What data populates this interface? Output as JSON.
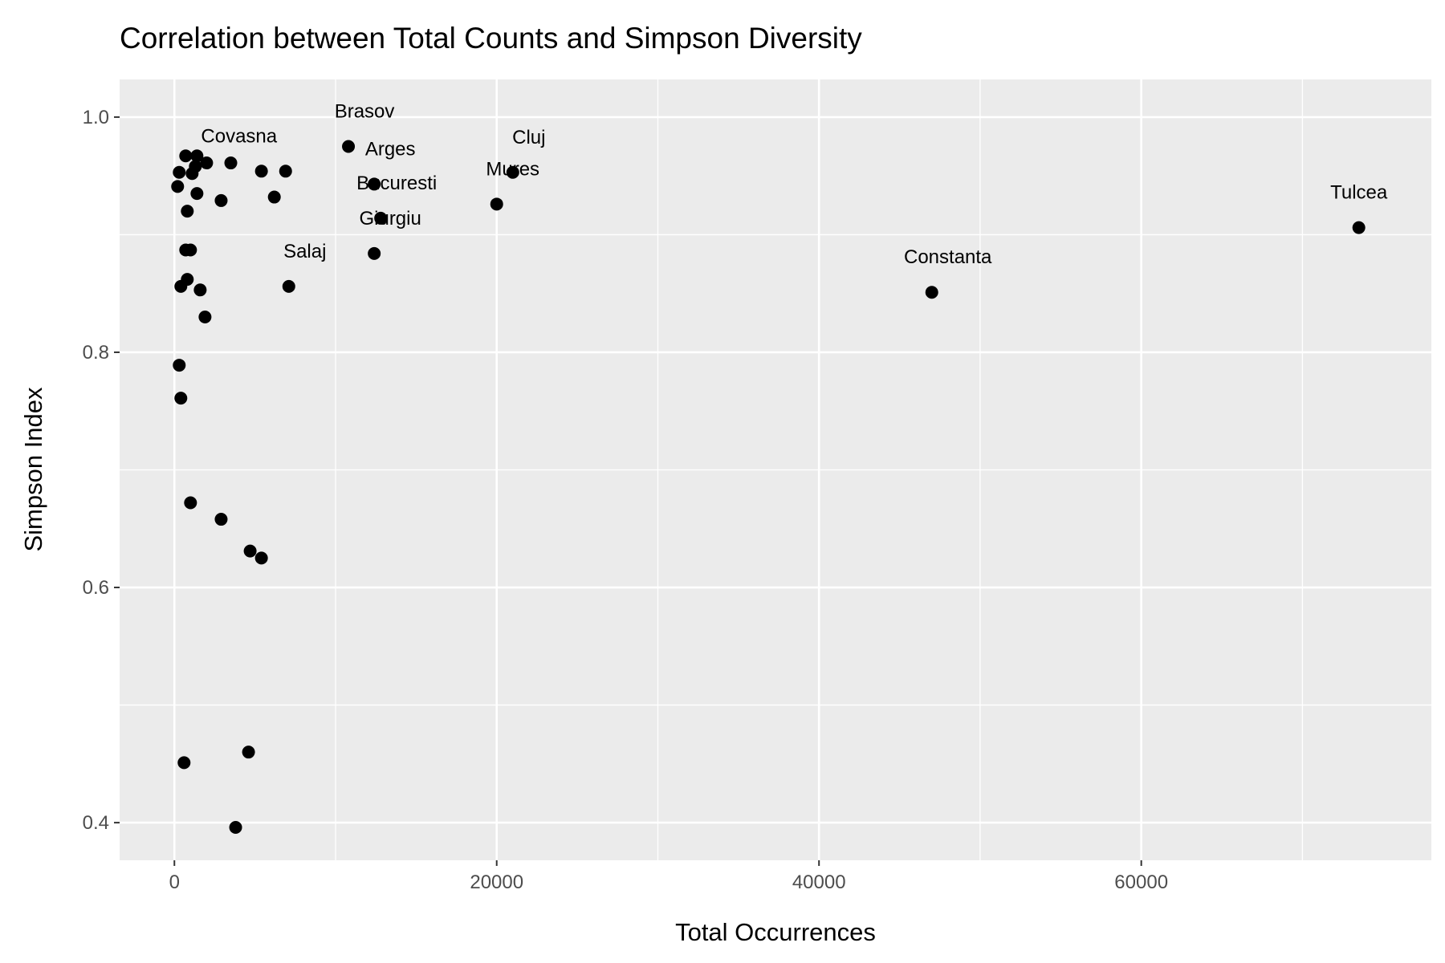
{
  "chart_data": {
    "type": "scatter",
    "title": "Correlation between Total Counts and Simpson Diversity",
    "xlabel": "Total Occurrences",
    "ylabel": "Simpson Index",
    "xlim": [
      -3400,
      78000
    ],
    "ylim": [
      0.368,
      1.032
    ],
    "x_ticks": [
      0,
      20000,
      40000,
      60000
    ],
    "x_tick_labels": [
      "0",
      "20000",
      "40000",
      "60000"
    ],
    "y_ticks": [
      0.4,
      0.6,
      0.8,
      1.0
    ],
    "y_tick_labels": [
      "0.4",
      "0.6",
      "0.8",
      "1.0"
    ],
    "x_minor_ticks": [
      10000,
      30000,
      50000,
      70000
    ],
    "y_minor_ticks": [
      0.5,
      0.7,
      0.9
    ],
    "grid": true,
    "legend": "none",
    "colors": {
      "panel_background": "#ebebeb",
      "grid_line": "#ffffff",
      "point": "#000000",
      "tick_label": "#4d4d4d"
    },
    "points": [
      {
        "x": 73500,
        "y": 0.906,
        "label": "Tulcea"
      },
      {
        "x": 47000,
        "y": 0.851,
        "label": "Constanta"
      },
      {
        "x": 21000,
        "y": 0.953,
        "label": "Cluj"
      },
      {
        "x": 20000,
        "y": 0.926,
        "label": "Mures"
      },
      {
        "x": 10800,
        "y": 0.975,
        "label": "Brasov"
      },
      {
        "x": 12400,
        "y": 0.943,
        "label": "Arges"
      },
      {
        "x": 12800,
        "y": 0.914,
        "label": "Bucuresti"
      },
      {
        "x": 12400,
        "y": 0.884,
        "label": "Giurgiu"
      },
      {
        "x": 6900,
        "y": 0.954,
        "label": "Covasna"
      },
      {
        "x": 7100,
        "y": 0.856,
        "label": "Salaj"
      },
      {
        "x": 5400,
        "y": 0.954,
        "label": ""
      },
      {
        "x": 6200,
        "y": 0.932,
        "label": ""
      },
      {
        "x": 3500,
        "y": 0.961,
        "label": ""
      },
      {
        "x": 2900,
        "y": 0.929,
        "label": ""
      },
      {
        "x": 2000,
        "y": 0.961,
        "label": ""
      },
      {
        "x": 1400,
        "y": 0.967,
        "label": ""
      },
      {
        "x": 700,
        "y": 0.967,
        "label": ""
      },
      {
        "x": 1300,
        "y": 0.958,
        "label": ""
      },
      {
        "x": 1100,
        "y": 0.952,
        "label": ""
      },
      {
        "x": 300,
        "y": 0.953,
        "label": ""
      },
      {
        "x": 200,
        "y": 0.941,
        "label": ""
      },
      {
        "x": 1400,
        "y": 0.935,
        "label": ""
      },
      {
        "x": 800,
        "y": 0.92,
        "label": ""
      },
      {
        "x": 700,
        "y": 0.887,
        "label": ""
      },
      {
        "x": 1000,
        "y": 0.887,
        "label": ""
      },
      {
        "x": 800,
        "y": 0.862,
        "label": ""
      },
      {
        "x": 400,
        "y": 0.856,
        "label": ""
      },
      {
        "x": 1600,
        "y": 0.853,
        "label": ""
      },
      {
        "x": 1900,
        "y": 0.83,
        "label": ""
      },
      {
        "x": 300,
        "y": 0.789,
        "label": ""
      },
      {
        "x": 400,
        "y": 0.761,
        "label": ""
      },
      {
        "x": 1000,
        "y": 0.672,
        "label": ""
      },
      {
        "x": 2900,
        "y": 0.658,
        "label": ""
      },
      {
        "x": 4700,
        "y": 0.631,
        "label": ""
      },
      {
        "x": 5400,
        "y": 0.625,
        "label": ""
      },
      {
        "x": 4600,
        "y": 0.46,
        "label": ""
      },
      {
        "x": 600,
        "y": 0.451,
        "label": ""
      },
      {
        "x": 3800,
        "y": 0.396,
        "label": ""
      }
    ],
    "label_offsets": {
      "Tulcea": [
        0,
        -36
      ],
      "Constanta": [
        20,
        -36
      ],
      "Cluj": [
        20,
        -36
      ],
      "Mures": [
        20,
        -36
      ],
      "Brasov": [
        20,
        -36
      ],
      "Arges": [
        20,
        -36
      ],
      "Bucuresti": [
        20,
        -36
      ],
      "Giurgiu": [
        20,
        -36
      ],
      "Covasna": [
        -58,
        -36
      ],
      "Salaj": [
        20,
        -36
      ]
    }
  }
}
